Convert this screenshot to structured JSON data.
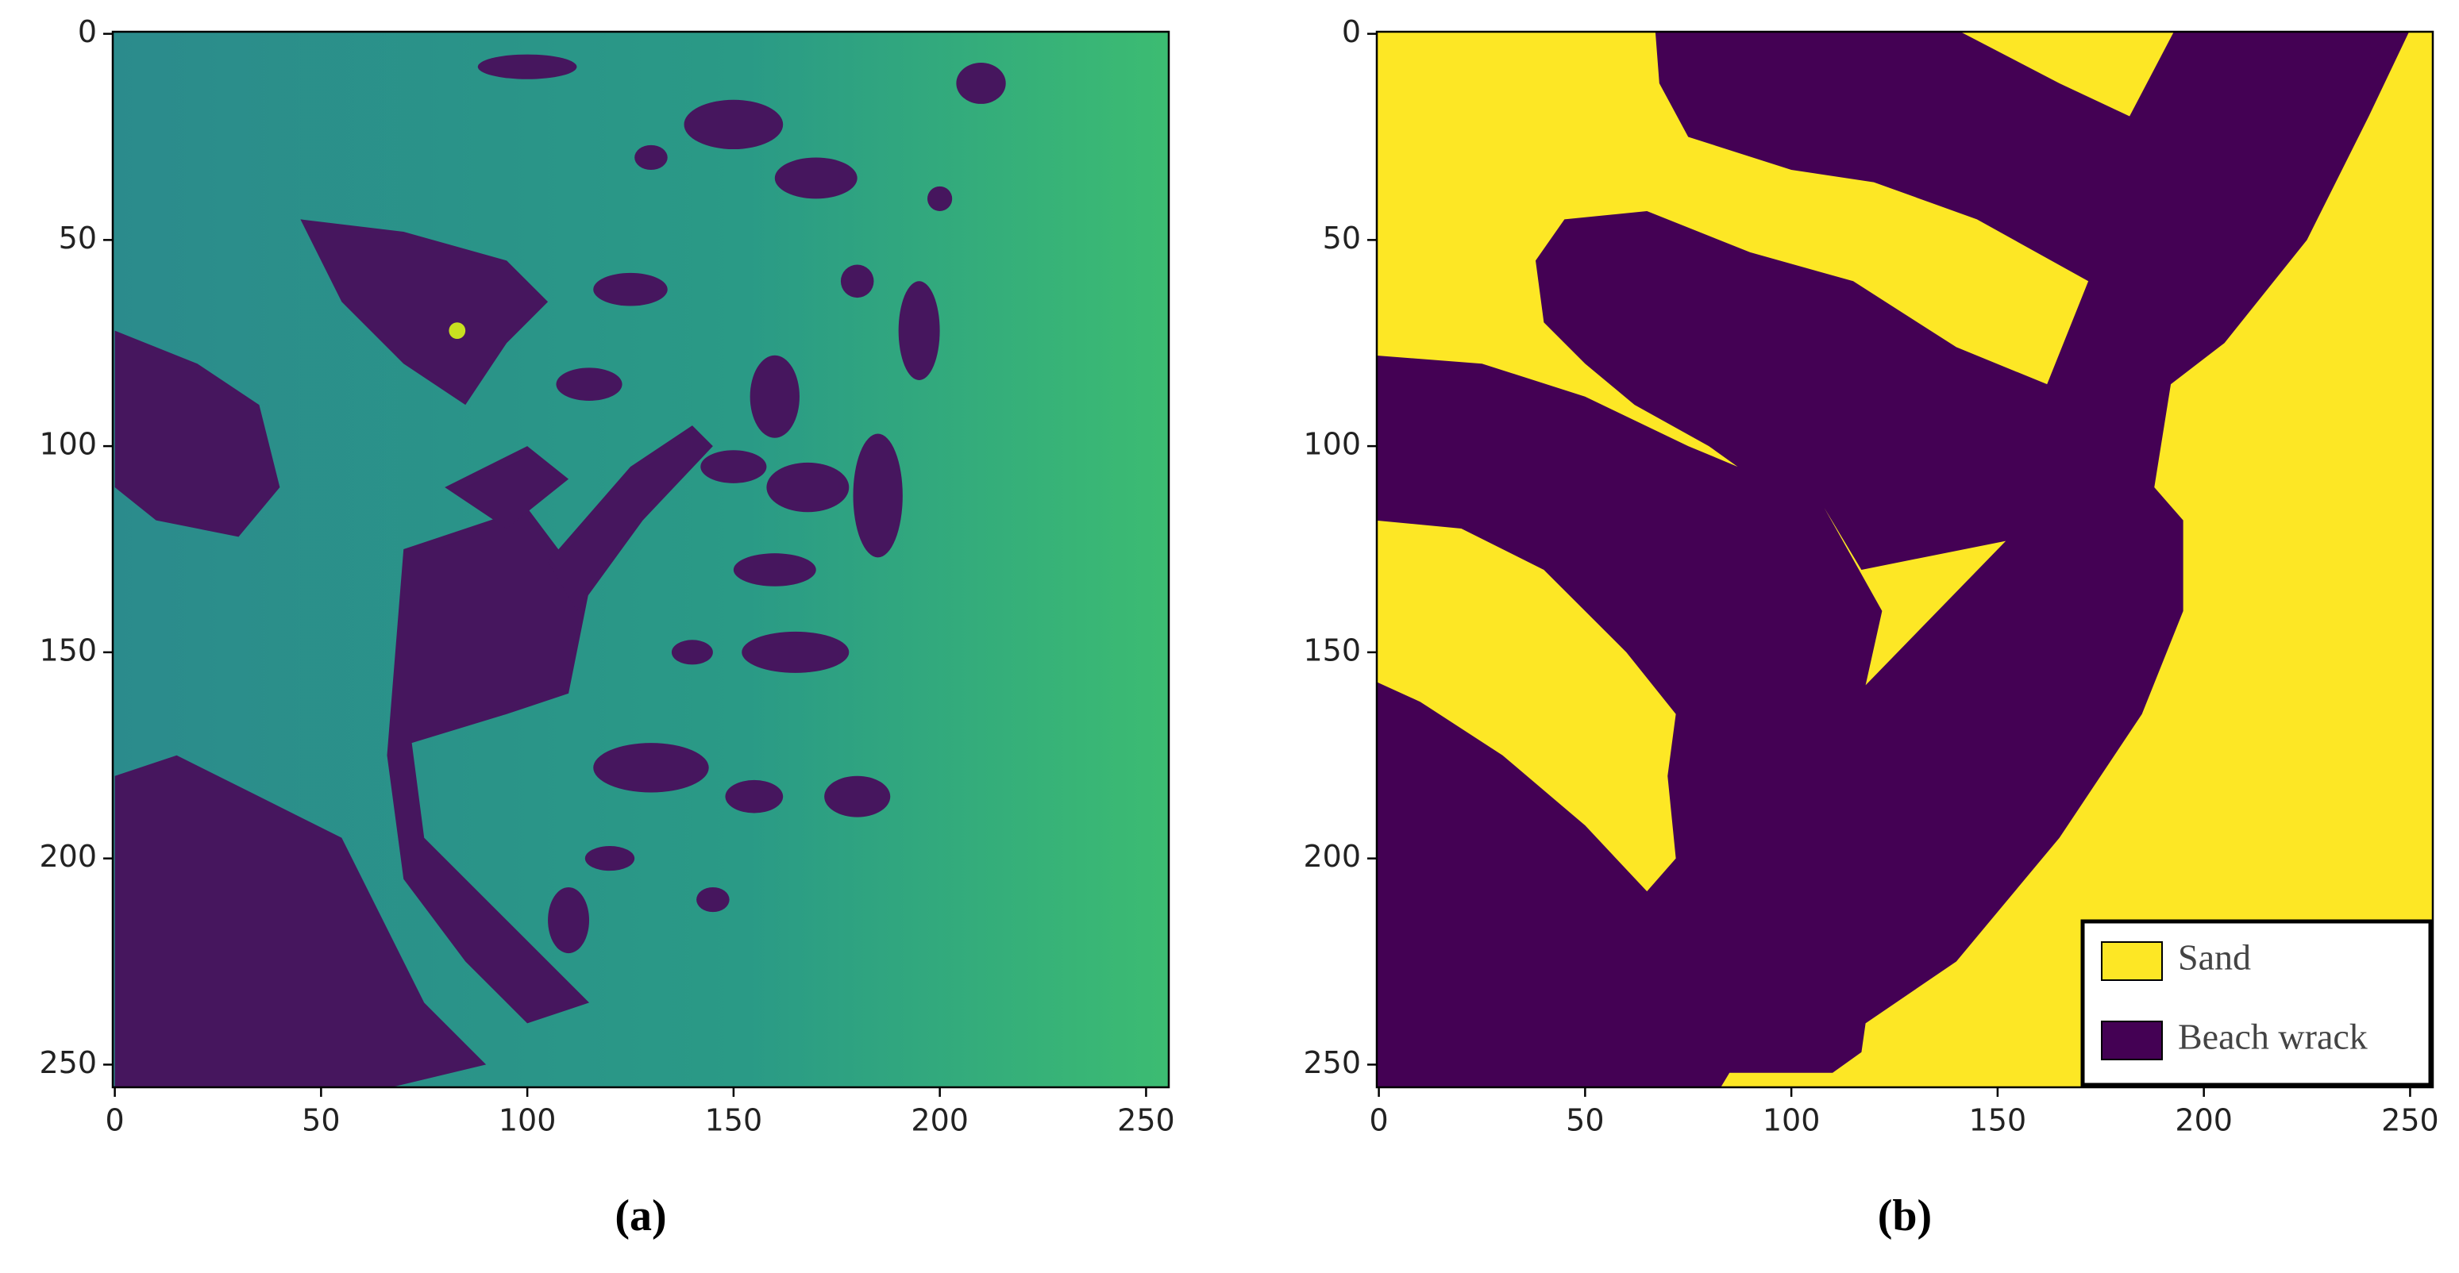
{
  "chart_data": [
    {
      "type": "image",
      "label": "(a)",
      "xlim": [
        -0.5,
        255.5
      ],
      "ylim": [
        255.5,
        -0.5
      ],
      "xticks": [
        0,
        50,
        100,
        150,
        200,
        250
      ],
      "yticks": [
        0,
        50,
        100,
        150,
        200,
        250
      ]
    },
    {
      "type": "image",
      "label": "(b)",
      "xlim": [
        -0.5,
        255.5
      ],
      "ylim": [
        255.5,
        -0.5
      ],
      "xticks": [
        0,
        50,
        100,
        150,
        200,
        250
      ],
      "yticks": [
        0,
        50,
        100,
        150,
        200,
        250
      ],
      "series": [
        {
          "name": "Sand",
          "color": "#fde725"
        },
        {
          "name": "Beach wrack",
          "color": "#440154"
        }
      ],
      "legend": "lower right"
    }
  ]
}
